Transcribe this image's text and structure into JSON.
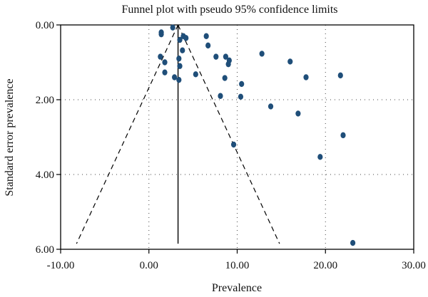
{
  "chart_data": {
    "type": "scatter",
    "title": "Funnel plot with pseudo 95% confidence limits",
    "xlabel": "Prevalence",
    "ylabel": "Standard error prevalence",
    "xlim": [
      -10,
      30
    ],
    "ylim": [
      0,
      6
    ],
    "y_inverted": true,
    "grid": true,
    "x_ticks": [
      -10,
      0,
      10,
      20,
      30
    ],
    "x_tick_labels": [
      "-10.00",
      "0.00",
      "10.00",
      "20.00",
      "30.00"
    ],
    "y_ticks": [
      0,
      2,
      4,
      6
    ],
    "y_tick_labels": [
      "0.00",
      "2.00",
      "4.00",
      "6.00"
    ],
    "pooled_estimate": 3.3,
    "pooled_line_se_max": 5.85,
    "funnel_limits": {
      "apex": [
        3.3,
        0.0
      ],
      "left_end": [
        -8.2,
        5.85
      ],
      "right_end": [
        14.8,
        5.85
      ]
    },
    "point_color": "#1f4e79",
    "points": [
      {
        "x": 2.7,
        "y": 0.07
      },
      {
        "x": 1.4,
        "y": 0.2
      },
      {
        "x": 1.4,
        "y": 0.25
      },
      {
        "x": 3.9,
        "y": 0.3
      },
      {
        "x": 4.2,
        "y": 0.35
      },
      {
        "x": 6.5,
        "y": 0.3
      },
      {
        "x": 3.5,
        "y": 0.4
      },
      {
        "x": 6.7,
        "y": 0.55
      },
      {
        "x": 3.8,
        "y": 0.68
      },
      {
        "x": 12.8,
        "y": 0.77
      },
      {
        "x": 1.3,
        "y": 0.85
      },
      {
        "x": 7.6,
        "y": 0.85
      },
      {
        "x": 8.7,
        "y": 0.85
      },
      {
        "x": 9.1,
        "y": 0.95
      },
      {
        "x": 3.4,
        "y": 0.9
      },
      {
        "x": 16.0,
        "y": 0.98
      },
      {
        "x": 1.8,
        "y": 1.0
      },
      {
        "x": 9.0,
        "y": 1.05
      },
      {
        "x": 3.5,
        "y": 1.1
      },
      {
        "x": 1.8,
        "y": 1.27
      },
      {
        "x": 5.3,
        "y": 1.32
      },
      {
        "x": 21.7,
        "y": 1.35
      },
      {
        "x": 2.9,
        "y": 1.4
      },
      {
        "x": 8.6,
        "y": 1.42
      },
      {
        "x": 17.8,
        "y": 1.4
      },
      {
        "x": 3.4,
        "y": 1.47
      },
      {
        "x": 10.5,
        "y": 1.58
      },
      {
        "x": 8.1,
        "y": 1.9
      },
      {
        "x": 10.4,
        "y": 1.92
      },
      {
        "x": 13.8,
        "y": 2.18
      },
      {
        "x": 16.9,
        "y": 2.37
      },
      {
        "x": 22.0,
        "y": 2.95
      },
      {
        "x": 9.6,
        "y": 3.2
      },
      {
        "x": 19.4,
        "y": 3.53
      },
      {
        "x": 23.1,
        "y": 5.83
      }
    ]
  }
}
